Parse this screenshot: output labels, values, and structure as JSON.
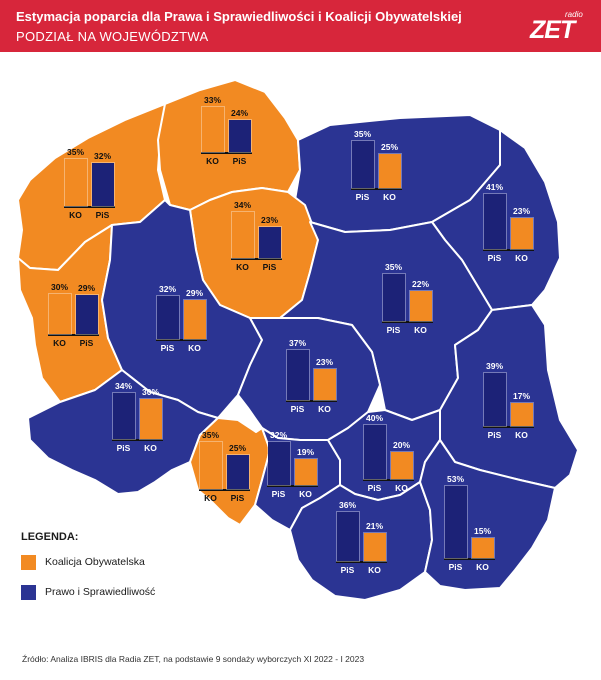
{
  "header": {
    "title": "Estymacja poparcia dla Prawa i Sprawiedliwości i Koalicji Obywatelskiej",
    "subtitle": "PODZIAŁ NA WOJEWÓDZTWA",
    "logo_small": "radio",
    "logo_main": "ZET"
  },
  "colors": {
    "header_red": "#d7263b",
    "ko_orange": "#f28a22",
    "pis_navy": "#2b3493",
    "bar_orange": "#f28a22",
    "bar_navy": "#1c2277",
    "border": "#ffffff"
  },
  "legend": {
    "title": "LEGENDA:",
    "items": [
      {
        "label": "Koalicja Obywatelska",
        "color": "#f28a22"
      },
      {
        "label": "Prawo i Sprawiedliwość",
        "color": "#2b3493"
      }
    ]
  },
  "regions": [
    {
      "winner": "KO",
      "first": {
        "party": "KO",
        "value": 35,
        "label": "35%"
      },
      "second": {
        "party": "PiS",
        "value": 32,
        "label": "32%"
      }
    },
    {
      "winner": "KO",
      "first": {
        "party": "KO",
        "value": 33,
        "label": "33%"
      },
      "second": {
        "party": "PiS",
        "value": 24,
        "label": "24%"
      }
    },
    {
      "winner": "PiS",
      "first": {
        "party": "PiS",
        "value": 35,
        "label": "35%"
      },
      "second": {
        "party": "KO",
        "value": 25,
        "label": "25%"
      }
    },
    {
      "winner": "KO",
      "first": {
        "party": "KO",
        "value": 34,
        "label": "34%"
      },
      "second": {
        "party": "PiS",
        "value": 23,
        "label": "23%"
      }
    },
    {
      "winner": "PiS",
      "first": {
        "party": "PiS",
        "value": 41,
        "label": "41%"
      },
      "second": {
        "party": "KO",
        "value": 23,
        "label": "23%"
      }
    },
    {
      "winner": "KO",
      "first": {
        "party": "KO",
        "value": 30,
        "label": "30%"
      },
      "second": {
        "party": "PiS",
        "value": 29,
        "label": "29%"
      }
    },
    {
      "winner": "PiS",
      "first": {
        "party": "PiS",
        "value": 32,
        "label": "32%"
      },
      "second": {
        "party": "KO",
        "value": 29,
        "label": "29%"
      }
    },
    {
      "winner": "PiS",
      "first": {
        "party": "PiS",
        "value": 35,
        "label": "35%"
      },
      "second": {
        "party": "KO",
        "value": 22,
        "label": "22%"
      }
    },
    {
      "winner": "PiS",
      "first": {
        "party": "PiS",
        "value": 37,
        "label": "37%"
      },
      "second": {
        "party": "KO",
        "value": 23,
        "label": "23%"
      }
    },
    {
      "winner": "PiS",
      "first": {
        "party": "PiS",
        "value": 39,
        "label": "39%"
      },
      "second": {
        "party": "KO",
        "value": 17,
        "label": "17%"
      }
    },
    {
      "winner": "PiS",
      "first": {
        "party": "PiS",
        "value": 34,
        "label": "34%"
      },
      "second": {
        "party": "KO",
        "value": 30,
        "label": "30%"
      }
    },
    {
      "winner": "PiS",
      "first": {
        "party": "PiS",
        "value": 40,
        "label": "40%"
      },
      "second": {
        "party": "KO",
        "value": 20,
        "label": "20%"
      }
    },
    {
      "winner": "KO",
      "first": {
        "party": "KO",
        "value": 35,
        "label": "35%"
      },
      "second": {
        "party": "PiS",
        "value": 25,
        "label": "25%"
      }
    },
    {
      "winner": "PiS",
      "first": {
        "party": "PiS",
        "value": 32,
        "label": "32%"
      },
      "second": {
        "party": "KO",
        "value": 19,
        "label": "19%"
      }
    },
    {
      "winner": "PiS",
      "first": {
        "party": "PiS",
        "value": 36,
        "label": "36%"
      },
      "second": {
        "party": "KO",
        "value": 21,
        "label": "21%"
      }
    },
    {
      "winner": "PiS",
      "first": {
        "party": "PiS",
        "value": 53,
        "label": "53%"
      },
      "second": {
        "party": "KO",
        "value": 15,
        "label": "15%"
      }
    }
  ],
  "source": "Źródło: Analiza IBRIS dla Radia ZET, na podstawie 9 sondaży wyborczych XI 2022 - I 2023"
}
